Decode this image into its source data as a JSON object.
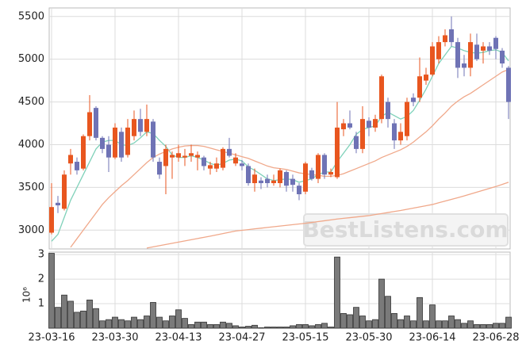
{
  "chart_data": [
    {
      "type": "candlestick",
      "up_color": "#e8561f",
      "down_color": "#6f73b5",
      "grid": true,
      "ylim": [
        2780,
        5600
      ],
      "yticks": [
        3000,
        3500,
        4000,
        4500,
        5000,
        5500
      ],
      "watermark": "BestListens.com",
      "open": [
        2970,
        3320,
        3250,
        3780,
        3800,
        3720,
        4100,
        4430,
        4080,
        4000,
        3850,
        4150,
        3880,
        4100,
        4300,
        4150,
        4270,
        3800,
        3750,
        3850,
        3850,
        3850,
        3870,
        3850,
        3850,
        3720,
        3720,
        3730,
        3950,
        3780,
        3780,
        3750,
        3550,
        3580,
        3600,
        3550,
        3550,
        3680,
        3600,
        3520,
        3450,
        3700,
        3600,
        3880,
        3650,
        3620,
        4180,
        4250,
        4100,
        3950,
        4280,
        4200,
        4300,
        4500,
        4250,
        4050,
        4100,
        4550,
        4550,
        4750,
        4820,
        5000,
        5200,
        5350,
        5200,
        4950,
        4900,
        5170,
        5100,
        5150,
        5250,
        5100,
        4900
      ],
      "high": [
        3550,
        3400,
        3700,
        3950,
        3850,
        4120,
        4580,
        4450,
        4100,
        4100,
        4250,
        4200,
        4300,
        4400,
        4420,
        4470,
        4300,
        3850,
        4000,
        3920,
        4000,
        3950,
        4000,
        3920,
        3870,
        3800,
        3850,
        3970,
        4080,
        3900,
        3820,
        3780,
        3720,
        3620,
        3650,
        3650,
        3720,
        3700,
        3650,
        3550,
        3800,
        3730,
        3900,
        3900,
        3720,
        4500,
        4300,
        4400,
        4150,
        4450,
        4320,
        4350,
        4820,
        4550,
        4300,
        4250,
        4550,
        4600,
        5020,
        4900,
        5200,
        5270,
        5350,
        5500,
        5250,
        5050,
        5300,
        5300,
        5200,
        5200,
        5270,
        5130,
        4920
      ],
      "low": [
        2950,
        3200,
        3230,
        3650,
        3650,
        3700,
        4050,
        4050,
        3900,
        3680,
        3830,
        3800,
        3850,
        4050,
        4100,
        4100,
        3800,
        3600,
        3420,
        3600,
        3800,
        3750,
        3800,
        3700,
        3700,
        3650,
        3680,
        3700,
        3850,
        3750,
        3700,
        3520,
        3450,
        3480,
        3500,
        3520,
        3500,
        3450,
        3450,
        3350,
        3420,
        3580,
        3550,
        3600,
        3620,
        3600,
        4100,
        4180,
        3900,
        3900,
        4100,
        4150,
        4250,
        4200,
        3950,
        4000,
        4050,
        4450,
        4500,
        4700,
        4800,
        4950,
        5150,
        5150,
        4780,
        4800,
        4800,
        4980,
        4950,
        5050,
        5000,
        4900,
        4300
      ],
      "close": [
        3270,
        3290,
        3650,
        3880,
        3700,
        4100,
        4380,
        4080,
        3950,
        3850,
        4200,
        3850,
        4200,
        4300,
        4150,
        4300,
        3850,
        3650,
        3950,
        3880,
        3900,
        3870,
        3900,
        3880,
        3750,
        3760,
        3780,
        3950,
        3870,
        3850,
        3750,
        3550,
        3650,
        3550,
        3550,
        3580,
        3700,
        3520,
        3530,
        3420,
        3780,
        3600,
        3880,
        3650,
        3680,
        4200,
        4250,
        4200,
        3950,
        4300,
        4200,
        4300,
        4800,
        4300,
        4050,
        4150,
        4500,
        4500,
        4800,
        4820,
        5150,
        5200,
        5280,
        5200,
        4900,
        4900,
        5200,
        5000,
        5150,
        5100,
        5120,
        4950,
        4500
      ],
      "lines": [
        {
          "color": "#7fd1b9",
          "values": [
            2870,
            2950,
            3150,
            3350,
            3500,
            3650,
            3800,
            3950,
            4030,
            4050,
            4050,
            4000,
            3990,
            4020,
            4080,
            4150,
            4130,
            4050,
            3980,
            3880,
            3850,
            3850,
            3870,
            3850,
            3820,
            3780,
            3760,
            3780,
            3820,
            3830,
            3810,
            3740,
            3700,
            3650,
            3600,
            3580,
            3590,
            3600,
            3590,
            3560,
            3580,
            3600,
            3650,
            3680,
            3680,
            3800,
            3900,
            4000,
            4120,
            4180,
            4200,
            4220,
            4330,
            4380,
            4340,
            4300,
            4330,
            4400,
            4520,
            4650,
            4800,
            4950,
            5050,
            5150,
            5130,
            5100,
            5080,
            5070,
            5080,
            5100,
            5110,
            5080,
            4980
          ]
        },
        {
          "color": "#f0a88a",
          "values": [
            null,
            null,
            null,
            2800,
            2900,
            3000,
            3100,
            3200,
            3300,
            3380,
            3450,
            3520,
            3580,
            3650,
            3720,
            3790,
            3850,
            3890,
            3920,
            3950,
            3970,
            3985,
            3990,
            3990,
            3980,
            3960,
            3940,
            3920,
            3900,
            3880,
            3860,
            3840,
            3810,
            3780,
            3750,
            3730,
            3720,
            3710,
            3690,
            3670,
            3660,
            3650,
            3640,
            3630,
            3630,
            3640,
            3660,
            3690,
            3720,
            3750,
            3780,
            3810,
            3850,
            3880,
            3910,
            3940,
            3980,
            4030,
            4090,
            4150,
            4220,
            4300,
            4370,
            4450,
            4510,
            4560,
            4600,
            4650,
            4700,
            4750,
            4800,
            4850,
            4880
          ]
        },
        {
          "color": "#f0a88a",
          "values": [
            null,
            null,
            null,
            null,
            null,
            null,
            null,
            null,
            null,
            null,
            null,
            null,
            null,
            null,
            null,
            2790,
            2804,
            2818,
            2832,
            2846,
            2860,
            2874,
            2888,
            2902,
            2916,
            2930,
            2945,
            2960,
            2975,
            2990,
            2998,
            3006,
            3015,
            3023,
            3032,
            3040,
            3048,
            3056,
            3064,
            3072,
            3080,
            3090,
            3100,
            3110,
            3120,
            3130,
            3138,
            3146,
            3154,
            3162,
            3170,
            3182,
            3194,
            3206,
            3218,
            3230,
            3244,
            3258,
            3272,
            3286,
            3300,
            3320,
            3340,
            3360,
            3380,
            3400,
            3422,
            3444,
            3466,
            3488,
            3510,
            3535,
            3560
          ]
        }
      ]
    },
    {
      "type": "bar",
      "color": "#7a7a7a",
      "grid": true,
      "y_label": "10⁶",
      "ylim": [
        0,
        3.1
      ],
      "yticks": [
        1,
        2,
        3
      ],
      "categories": [
        "23-03-16",
        null,
        null,
        null,
        null,
        null,
        null,
        null,
        null,
        null,
        "23-03-30",
        null,
        null,
        null,
        null,
        null,
        null,
        null,
        null,
        null,
        "23-04-13",
        null,
        null,
        null,
        null,
        null,
        null,
        null,
        null,
        null,
        "23-04-27",
        null,
        null,
        null,
        null,
        null,
        null,
        null,
        null,
        null,
        "23-05-15",
        null,
        null,
        null,
        null,
        null,
        null,
        null,
        null,
        null,
        "23-05-30",
        null,
        null,
        null,
        null,
        null,
        null,
        null,
        null,
        null,
        "23-06-14",
        null,
        null,
        null,
        null,
        null,
        null,
        null,
        null,
        null,
        "23-06-28",
        null,
        null
      ],
      "values": [
        3.05,
        0.85,
        1.35,
        1.1,
        0.65,
        0.7,
        1.15,
        0.8,
        0.3,
        0.35,
        0.45,
        0.35,
        0.3,
        0.45,
        0.35,
        0.5,
        1.05,
        0.45,
        0.3,
        0.5,
        0.75,
        0.4,
        0.15,
        0.25,
        0.25,
        0.15,
        0.15,
        0.25,
        0.2,
        0.1,
        0.05,
        0.08,
        0.12,
        0.02,
        0.05,
        0.05,
        0.05,
        0.05,
        0.1,
        0.15,
        0.15,
        0.1,
        0.15,
        0.2,
        0.05,
        2.9,
        0.6,
        0.55,
        0.85,
        0.5,
        0.3,
        0.35,
        2.0,
        1.3,
        0.6,
        0.35,
        0.5,
        0.3,
        1.25,
        0.3,
        0.95,
        0.3,
        0.3,
        0.5,
        0.35,
        0.2,
        0.3,
        0.15,
        0.15,
        0.15,
        0.2,
        0.2,
        0.45
      ]
    }
  ]
}
